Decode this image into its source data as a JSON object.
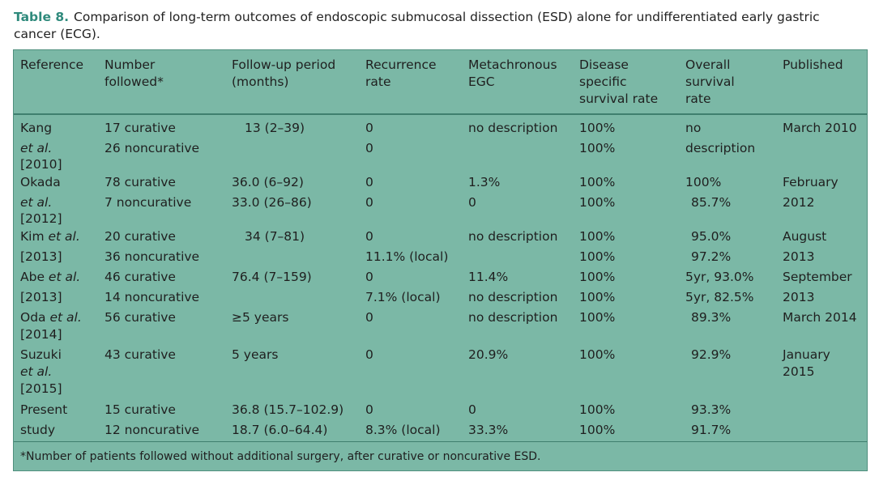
{
  "caption": {
    "label": "Table 8.",
    "text": "Comparison of long-term outcomes of endoscopic submucosal dissection (ESD) alone for undifferentiated early gastric cancer (ECG)."
  },
  "headers": [
    "Reference",
    "Number\nfollowed*",
    "Follow-up period\n(months)",
    "Recurrence\nrate",
    "Metachronous\nEGC",
    "Disease\nspecific\nsurvival rate",
    "Overall\nsurvival\nrate",
    "Published"
  ],
  "rows": [
    {
      "ref": "Kang",
      "number": "17 curative",
      "followup": "13 (2–39)",
      "recurrence": "0",
      "metachronous": "no description",
      "dss": "100%",
      "overall": "no",
      "published": "March 2010"
    },
    {
      "ref": "et al.",
      "number": "26 noncurative",
      "followup": "",
      "recurrence": "0",
      "metachronous": "",
      "dss": "100%",
      "overall": "description",
      "published": ""
    },
    {
      "ref": "[2010]",
      "number": "",
      "followup": "",
      "recurrence": "",
      "metachronous": "",
      "dss": "",
      "overall": "",
      "published": ""
    },
    {
      "ref": "Okada",
      "number": "78 curative",
      "followup": "36.0 (6–92)",
      "recurrence": "0",
      "metachronous": "1.3%",
      "dss": "100%",
      "overall": "100%",
      "published": "February"
    },
    {
      "ref": "et al.",
      "number": "7 noncurative",
      "followup": "33.0 (26–86)",
      "recurrence": "0",
      "metachronous": "0",
      "dss": "100%",
      "overall": "85.7%",
      "published": "2012"
    },
    {
      "ref": "[2012]",
      "number": "",
      "followup": "",
      "recurrence": "",
      "metachronous": "",
      "dss": "",
      "overall": "",
      "published": ""
    },
    {
      "ref": "Kim et al.",
      "number": "20 curative",
      "followup": "34 (7–81)",
      "recurrence": "0",
      "metachronous": "no description",
      "dss": "100%",
      "overall": "95.0%",
      "published": "August"
    },
    {
      "ref": "[2013]",
      "number": "36 noncurative",
      "followup": "",
      "recurrence": "11.1% (local)",
      "metachronous": "",
      "dss": "100%",
      "overall": "97.2%",
      "published": "2013"
    },
    {
      "ref": "Abe et al.",
      "number": "46 curative",
      "followup": "76.4 (7–159)",
      "recurrence": "0",
      "metachronous": "11.4%",
      "dss": "100%",
      "overall": "5yr, 93.0%",
      "published": "September"
    },
    {
      "ref": "[2013]",
      "number": "14 noncurative",
      "followup": "",
      "recurrence": "7.1% (local)",
      "metachronous": "no description",
      "dss": "100%",
      "overall": "5yr, 82.5%",
      "published": "2013"
    },
    {
      "ref": "Oda et al.",
      "number": "56 curative",
      "followup": "≥5 years",
      "recurrence": "0",
      "metachronous": "no description",
      "dss": "100%",
      "overall": "89.3%",
      "published": "March 2014"
    },
    {
      "ref": "[2014]",
      "number": "",
      "followup": "",
      "recurrence": "",
      "metachronous": "",
      "dss": "",
      "overall": "",
      "published": ""
    },
    {
      "ref": "Suzuki",
      "number": "43 curative",
      "followup": "5 years",
      "recurrence": "0",
      "metachronous": "20.9%",
      "dss": "100%",
      "overall": "92.9%",
      "published": "January"
    },
    {
      "ref": "et al.",
      "number": "",
      "followup": "",
      "recurrence": "",
      "metachronous": "",
      "dss": "",
      "overall": "",
      "published": "2015"
    },
    {
      "ref": "[2015]",
      "number": "",
      "followup": "",
      "recurrence": "",
      "metachronous": "",
      "dss": "",
      "overall": "",
      "published": ""
    },
    {
      "ref": "Present",
      "number": "15 curative",
      "followup": "36.8 (15.7–102.9)",
      "recurrence": "0",
      "metachronous": "0",
      "dss": "100%",
      "overall": "93.3%",
      "published": ""
    },
    {
      "ref": "study",
      "number": "12 noncurative",
      "followup": "18.7 (6.0–64.4)",
      "recurrence": "8.3% (local)",
      "metachronous": "33.3%",
      "dss": "100%",
      "overall": "91.7%",
      "published": ""
    }
  ],
  "footnote": "*Number of patients followed without additional surgery, after curative or noncurative ESD.",
  "colors": {
    "table_background": "#7bb8a6",
    "rule": "#3f7f6e",
    "caption_label": "#2f8a7c"
  }
}
